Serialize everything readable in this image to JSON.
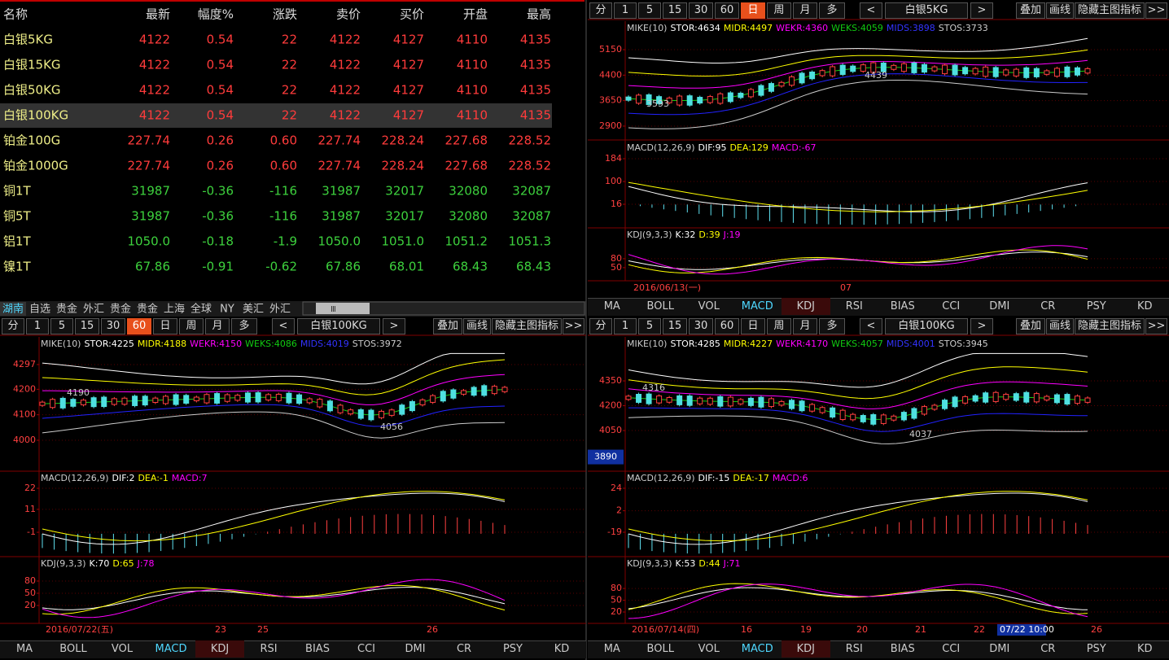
{
  "quote_table": {
    "headers": [
      "名称",
      "最新",
      "幅度%",
      "涨跌",
      "卖价",
      "买价",
      "开盘",
      "最高"
    ],
    "rows": [
      [
        "白银5KG",
        "4122",
        "0.54",
        "22",
        "4122",
        "4127",
        "4110",
        "4135"
      ],
      [
        "白银15KG",
        "4122",
        "0.54",
        "22",
        "4122",
        "4127",
        "4110",
        "4135"
      ],
      [
        "白银50KG",
        "4122",
        "0.54",
        "22",
        "4122",
        "4127",
        "4110",
        "4135"
      ],
      [
        "白银100KG",
        "4122",
        "0.54",
        "22",
        "4122",
        "4127",
        "4110",
        "4135"
      ],
      [
        "铂金100G",
        "227.74",
        "0.26",
        "0.60",
        "227.74",
        "228.24",
        "227.68",
        "228.52"
      ],
      [
        "铂金1000G",
        "227.74",
        "0.26",
        "0.60",
        "227.74",
        "228.24",
        "227.68",
        "228.52"
      ],
      [
        "铜1T",
        "31987",
        "-0.36",
        "-116",
        "31987",
        "32017",
        "32080",
        "32087"
      ],
      [
        "铜5T",
        "31987",
        "-0.36",
        "-116",
        "31987",
        "32017",
        "32080",
        "32087"
      ],
      [
        "铝1T",
        "1050.0",
        "-0.18",
        "-1.9",
        "1050.0",
        "1051.0",
        "1051.2",
        "1051.3"
      ],
      [
        "镍1T",
        "67.86",
        "-0.91",
        "-0.62",
        "67.86",
        "68.01",
        "68.43",
        "68.43"
      ]
    ]
  },
  "market_tabs": [
    "湖南",
    "自选",
    "贵金",
    "外汇",
    "贵金",
    "贵金",
    "上海",
    "全球",
    "NY",
    "美汇",
    "外汇"
  ],
  "scroll_label": "Ⅲ",
  "charts": [
    {
      "toolbar": {
        "periods": [
          "分",
          "1",
          "5",
          "15",
          "30",
          "60",
          "日",
          "周",
          "月",
          "多"
        ],
        "active_period": "日",
        "prev": "<",
        "symbol": "白银5KG",
        "next": ">",
        "tools": [
          "叠加",
          "画线",
          "隐藏主图指标",
          ">>"
        ]
      },
      "main": {
        "legend": [
          "MIKE(10)",
          "STOR:4634",
          "MIDR:4497",
          "WEKR:4360",
          "WEKS:4059",
          "MIDS:3898",
          "STOS:3733"
        ],
        "ylim": [
          2540,
          5940
        ],
        "yticks": [
          5150,
          4400,
          3650,
          2900
        ],
        "annotations": [
          "4439",
          "3593"
        ]
      },
      "macd": {
        "legend": [
          "MACD(12,26,9)",
          "DIF:95",
          "DEA:129",
          "MACD:-67"
        ],
        "ylim": [
          -65,
          244
        ],
        "yticks": [
          184,
          100,
          16
        ]
      },
      "kdj": {
        "legend": [
          "KDJ(9,3,3)",
          "K:32",
          "D:39",
          "J:19"
        ],
        "ylim": [
          6,
          178
        ],
        "yticks": [
          80,
          50
        ]
      },
      "dates": [
        "2016/06/13(一)",
        "07"
      ],
      "indicators": [
        "MA",
        "BOLL",
        "VOL",
        "MACD",
        "KDJ",
        "RSI",
        "BIAS",
        "CCI",
        "DMI",
        "CR",
        "PSY",
        "KD"
      ],
      "active_indicator": "MACD"
    },
    {
      "toolbar": {
        "periods": [
          "分",
          "1",
          "5",
          "15",
          "30",
          "60",
          "日",
          "周",
          "月",
          "多"
        ],
        "active_period": "60",
        "prev": "<",
        "symbol": "白银100KG",
        "next": ">",
        "tools": [
          "叠加",
          "画线",
          "隐藏主图指标",
          ">>"
        ]
      },
      "main": {
        "legend": [
          "MIKE(10)",
          "STOR:4225",
          "MIDR:4188",
          "WEKR:4150",
          "WEKS:4086",
          "MIDS:4019",
          "STOS:3972"
        ],
        "ylim": [
          3885,
          4399
        ],
        "yticks": [
          4297,
          4200,
          4100,
          4000
        ],
        "annotations": [
          "4190",
          "4056"
        ]
      },
      "macd": {
        "legend": [
          "MACD(12,26,9)",
          "DIF:2",
          "DEA:-1",
          "MACD:7"
        ],
        "ylim": [
          -12.9,
          30.1
        ],
        "yticks": [
          22,
          11,
          -1
        ]
      },
      "kdj": {
        "legend": [
          "KDJ(9,3,3)",
          "K:70",
          "D:65",
          "J:78"
        ],
        "ylim": [
          -24,
          136
        ],
        "yticks": [
          80,
          50,
          20
        ]
      },
      "dates": [
        "2016/07/22(五)",
        "23",
        "25",
        "26"
      ],
      "indicators": [
        "MA",
        "BOLL",
        "VOL",
        "MACD",
        "KDJ",
        "RSI",
        "BIAS",
        "CCI",
        "DMI",
        "CR",
        "PSY",
        "KD"
      ],
      "active_indicator": "MACD"
    },
    {
      "toolbar": {
        "periods": [
          "分",
          "1",
          "5",
          "15",
          "30",
          "60",
          "日",
          "周",
          "月",
          "多"
        ],
        "prev": "<",
        "symbol": "白银100KG",
        "next": ">",
        "tools": [
          "叠加",
          "画线",
          "隐藏主图指标",
          ">>"
        ]
      },
      "main": {
        "legend": [
          "MIKE(10)",
          "STOR:4285",
          "MIDR:4227",
          "WEKR:4170",
          "WEKS:4057",
          "MIDS:4001",
          "STOS:3945"
        ],
        "ylim": [
          3814,
          4606
        ],
        "yticks": [
          4350,
          4200,
          4050
        ],
        "annotations": [
          "4316",
          "4037"
        ],
        "cursor_value": 3890
      },
      "macd": {
        "legend": [
          "MACD(12,26,9)",
          "DIF:-15",
          "DEA:-17",
          "MACD:6"
        ],
        "ylim": [
          -41.3,
          39.1
        ],
        "yticks": [
          24,
          2,
          -19
        ]
      },
      "kdj": {
        "legend": [
          "KDJ(9,3,3)",
          "K:53",
          "D:44",
          "J:71"
        ],
        "ylim": [
          -9,
          157
        ],
        "yticks": [
          80,
          50,
          20
        ]
      },
      "dates": [
        "2016/07/14(四)",
        "16",
        "19",
        "20",
        "21",
        "22",
        "07/22 10:00",
        "26"
      ],
      "indicators": [
        "MA",
        "BOLL",
        "VOL",
        "MACD",
        "KDJ",
        "RSI",
        "BIAS",
        "CCI",
        "DMI",
        "CR",
        "PSY",
        "KD"
      ],
      "active_indicator": "MACD"
    }
  ]
}
